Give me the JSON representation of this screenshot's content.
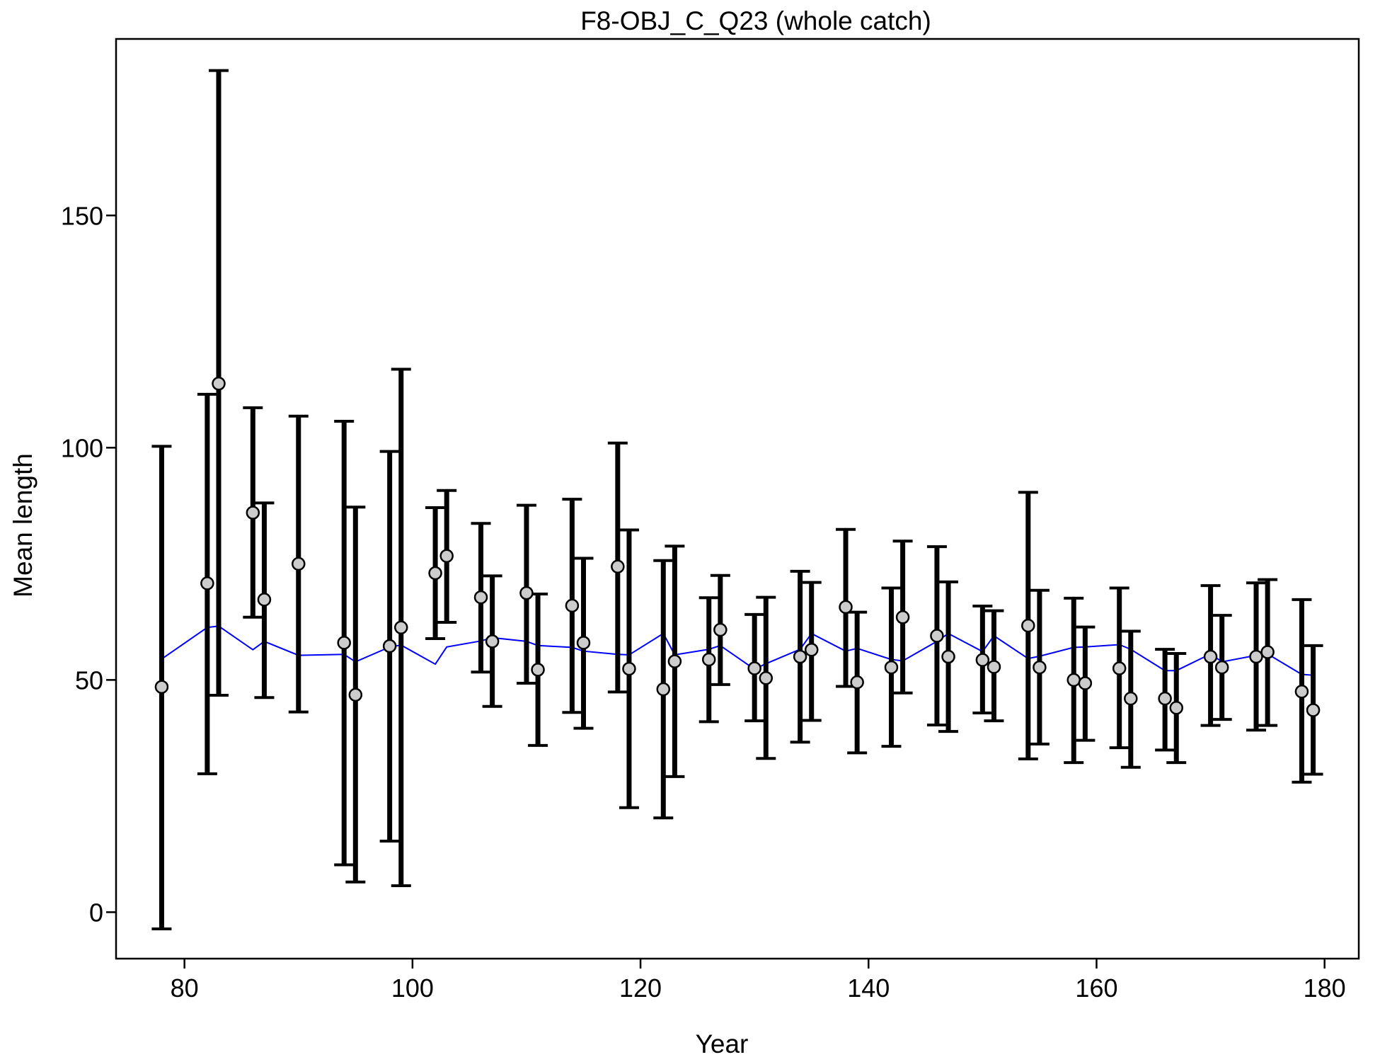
{
  "chart_data": {
    "type": "scatter",
    "title": "F8-OBJ_C_Q23 (whole catch)",
    "xlabel": "Year",
    "ylabel": "Mean length",
    "xlim": [
      74,
      183
    ],
    "ylim": [
      -10,
      188
    ],
    "xticks": [
      80,
      100,
      120,
      140,
      160,
      180
    ],
    "yticks": [
      0,
      50,
      100,
      150
    ],
    "grid": false,
    "legend": "none",
    "colors": {
      "observed_point": "#cccccc",
      "error_bar": "#000000",
      "expected_line": "#0000ff"
    },
    "series": [
      {
        "kind": "observed_with_error_bars",
        "x": [
          78,
          82,
          83,
          86,
          87,
          90,
          94,
          95,
          98,
          99,
          102,
          103,
          106,
          107,
          110,
          111,
          114,
          115,
          118,
          119,
          122,
          123,
          126,
          127,
          130,
          131,
          134,
          135,
          138,
          139,
          142,
          143,
          146,
          147,
          150,
          151,
          154,
          155,
          158,
          159,
          162,
          163,
          166,
          167,
          170,
          171,
          174,
          175,
          178,
          179
        ],
        "y": [
          48.5,
          70.8,
          113.8,
          86.0,
          67.3,
          75.0,
          58.0,
          46.8,
          57.3,
          61.3,
          73.0,
          76.7,
          67.8,
          58.3,
          68.7,
          52.2,
          66.0,
          58.0,
          74.4,
          52.4,
          48.0,
          54.0,
          54.4,
          60.8,
          52.5,
          50.4,
          55.0,
          56.5,
          65.7,
          49.5,
          52.7,
          63.5,
          59.5,
          55.0,
          54.3,
          52.8,
          61.7,
          52.7,
          50.0,
          49.3,
          52.5,
          46.0,
          46.0,
          44.0,
          55.0,
          52.7,
          55.0,
          56.0,
          47.5,
          43.5
        ],
        "lower": [
          -3.6,
          29.8,
          46.7,
          63.5,
          46.2,
          43.1,
          10.2,
          6.5,
          15.3,
          5.7,
          58.9,
          62.4,
          51.7,
          44.3,
          49.3,
          35.9,
          43.0,
          39.6,
          47.4,
          22.5,
          20.3,
          29.2,
          41.0,
          49.0,
          41.2,
          33.1,
          36.6,
          41.3,
          48.6,
          34.3,
          35.7,
          47.2,
          40.3,
          38.9,
          42.9,
          41.2,
          33.0,
          36.2,
          32.2,
          37.0,
          35.4,
          31.2,
          34.9,
          32.2,
          40.2,
          41.5,
          39.2,
          40.2,
          28.0,
          29.7
        ],
        "upper": [
          100.3,
          111.5,
          181.2,
          108.6,
          88.1,
          106.8,
          105.7,
          87.2,
          99.2,
          116.9,
          87.1,
          90.8,
          83.7,
          72.4,
          87.6,
          68.5,
          88.9,
          76.2,
          101.0,
          82.3,
          75.7,
          78.8,
          67.7,
          72.5,
          64.1,
          67.8,
          73.4,
          71.0,
          82.4,
          64.6,
          69.8,
          79.9,
          78.7,
          71.1,
          65.9,
          64.9,
          90.4,
          69.3,
          67.6,
          61.4,
          69.8,
          60.5,
          56.6,
          55.7,
          70.3,
          63.9,
          70.9,
          71.6,
          67.3,
          57.4
        ]
      },
      {
        "kind": "expected_line",
        "x": [
          78,
          82,
          83,
          86,
          87,
          90,
          94,
          95,
          98,
          99,
          102,
          103,
          106,
          107,
          110,
          111,
          114,
          115,
          118,
          119,
          122,
          123,
          126,
          127,
          130,
          131,
          134,
          135,
          138,
          139,
          142,
          143,
          146,
          147,
          150,
          151,
          154,
          155,
          158,
          159,
          162,
          163,
          166,
          167,
          170,
          171,
          174,
          175,
          178,
          179
        ],
        "y": [
          54.5,
          61.3,
          61.6,
          56.5,
          58.3,
          55.3,
          55.5,
          53.9,
          57.1,
          57.5,
          53.4,
          57.1,
          58.4,
          59.1,
          58.3,
          57.4,
          57.0,
          56.2,
          55.5,
          55.4,
          60.0,
          55.4,
          56.6,
          57.4,
          52.3,
          53.5,
          56.6,
          60.0,
          56.2,
          56.8,
          54.4,
          54.1,
          58.3,
          60.0,
          56.1,
          59.5,
          54.6,
          55.1,
          57.0,
          57.1,
          57.6,
          56.6,
          52.0,
          52.0,
          55.6,
          53.9,
          55.3,
          55.6,
          51.2,
          51.0
        ]
      }
    ]
  }
}
